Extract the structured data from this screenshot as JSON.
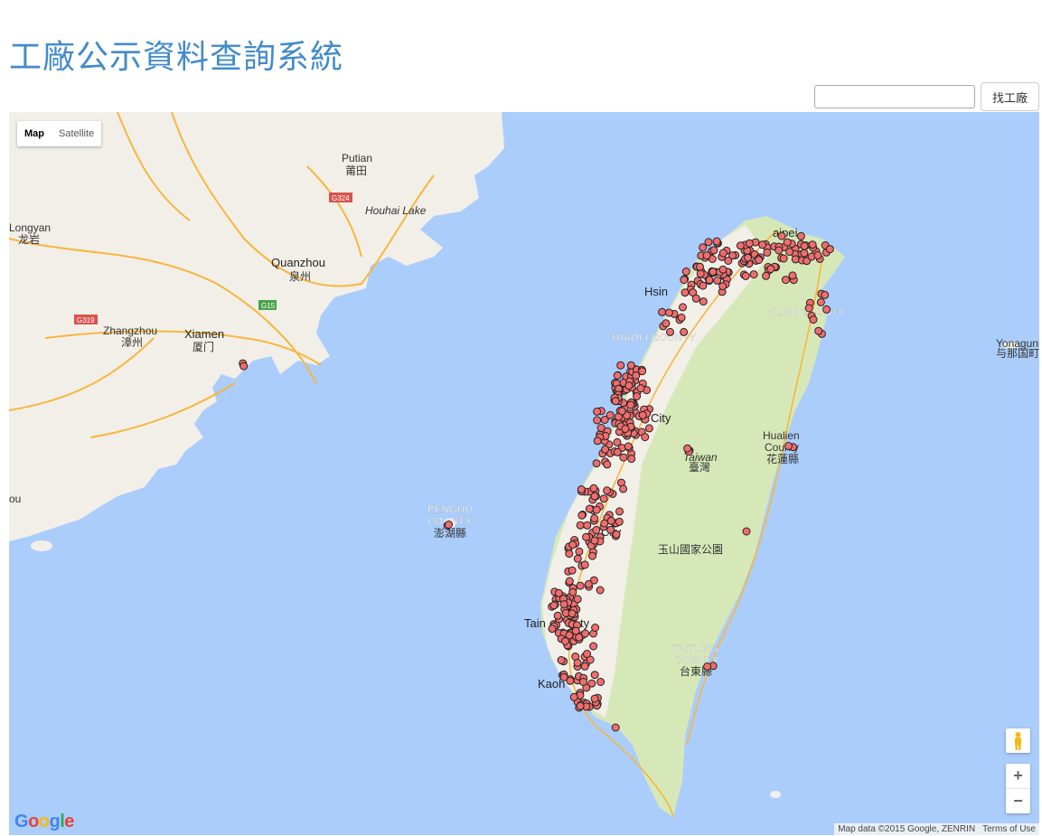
{
  "page": {
    "title": "工廠公示資料查詢系統",
    "search_placeholder": "",
    "search_button": "找工廠"
  },
  "map": {
    "type_buttons": [
      "Map",
      "Satellite"
    ],
    "active_type": "Map",
    "attribution": "Map data ©2015 Google, ZENRIN",
    "terms": "Terms of Use",
    "logo": "Google",
    "zoom_in": "+",
    "zoom_out": "−",
    "labels": {
      "putian": "Putian",
      "putian_zh": "莆田",
      "houhai": "Houhai Lake",
      "longyan": "Longyan",
      "longyan_zh": "龙岩",
      "quanzhou": "Quanzhou",
      "quanzhou_zh": "泉州",
      "zhangzhou": "Zhangzhou",
      "zhangzhou_zh": "漳州",
      "xiamen": "Xiamen",
      "xiamen_zh": "厦门",
      "shantou": "ou",
      "taipei": "aipei",
      "hsinchu": "Hsin",
      "yilan": "YILAN COUNTY",
      "miaoli": "MIAOLI COUNTY",
      "taichung": "City",
      "taiwan": "Taiwan",
      "taiwan_zh": "臺灣",
      "hualien": "Hualien",
      "hualien2": "County",
      "hualien_zh": "花蓮縣",
      "penghu": "PENGHU",
      "penghu2": "COUNTY",
      "penghu_zh": "澎湖縣",
      "chiayi": "City",
      "yushan": "玉山國家公園",
      "tainan": "Tain",
      "tainan2": "ty",
      "taitung": "TAITUNG",
      "taitung2": "COUNTY",
      "taitung_zh": "台東縣",
      "kaohsiung": "Kaoh",
      "yonaguni": "Yonaguni",
      "yonaguni_zh": "与那国町",
      "g324": "G324",
      "g319": "G319",
      "g15": "G15"
    },
    "colors": {
      "water": "#abcdfb",
      "land": "#f2efe9",
      "park": "#cfe4b0",
      "road": "#f6b73c",
      "marker": "#f16d6d"
    },
    "markers_note": "red circle markers"
  }
}
